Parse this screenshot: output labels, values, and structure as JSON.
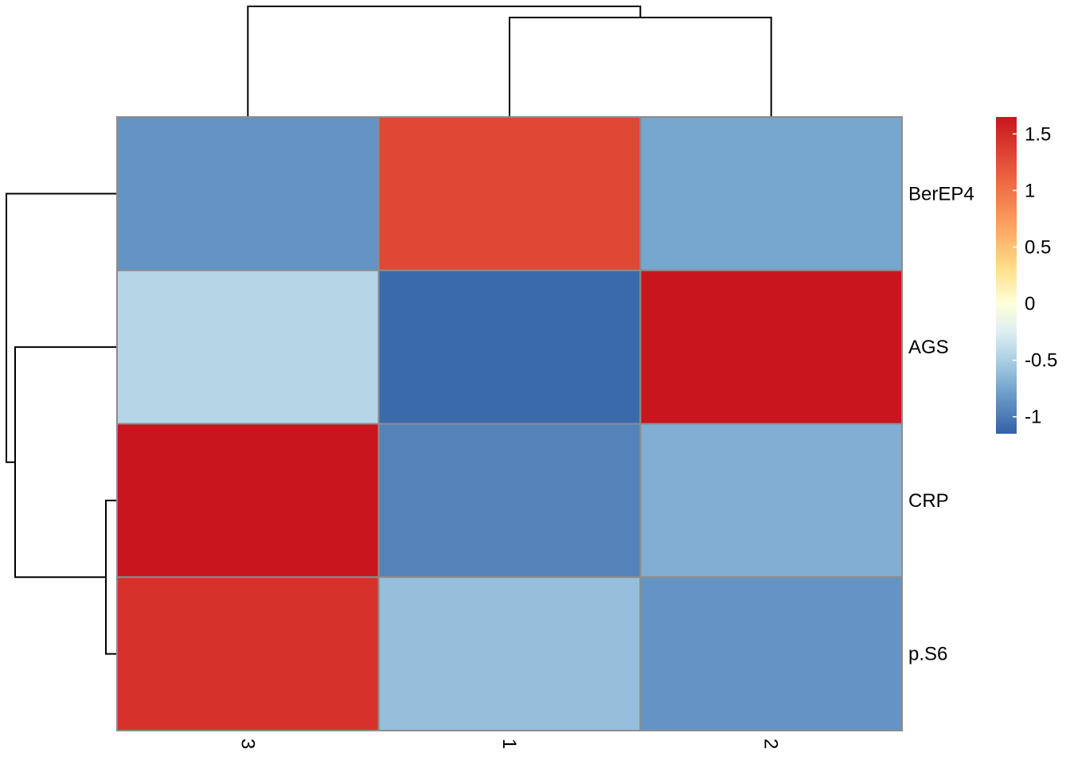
{
  "chart_data": {
    "type": "heatmap",
    "columns": [
      "3",
      "1",
      "2"
    ],
    "rows": [
      "BerEP4",
      "AGS",
      "CRP",
      "p.S6"
    ],
    "values": [
      [
        -0.85,
        1.3,
        -0.75
      ],
      [
        -0.45,
        -1.1,
        1.65
      ],
      [
        1.65,
        -0.95,
        -0.7
      ],
      [
        1.45,
        -0.6,
        -0.85
      ]
    ],
    "color_scale": {
      "min": -1.15,
      "max": 1.65,
      "stops": [
        {
          "value": -1.15,
          "color": "#3361A6"
        },
        {
          "value": -0.8,
          "color": "#6C9DC9"
        },
        {
          "value": -0.5,
          "color": "#ABD0E4"
        },
        {
          "value": -0.25,
          "color": "#DDEFF2"
        },
        {
          "value": 0.0,
          "color": "#FFFFD9"
        },
        {
          "value": 0.3,
          "color": "#FEE08B"
        },
        {
          "value": 0.7,
          "color": "#FCA05F"
        },
        {
          "value": 1.1,
          "color": "#EC6541"
        },
        {
          "value": 1.65,
          "color": "#C9151E"
        }
      ]
    },
    "legend": {
      "ticks": [
        1.5,
        1,
        0.5,
        0,
        -0.5,
        -1
      ],
      "tick_labels": [
        "1.5",
        "1",
        "0.5",
        "0",
        "-0.5",
        "-1"
      ],
      "placement": "right"
    },
    "cell_border_color": "#8C8C8C",
    "dendrograms": {
      "columns": "top",
      "rows": "left"
    }
  }
}
